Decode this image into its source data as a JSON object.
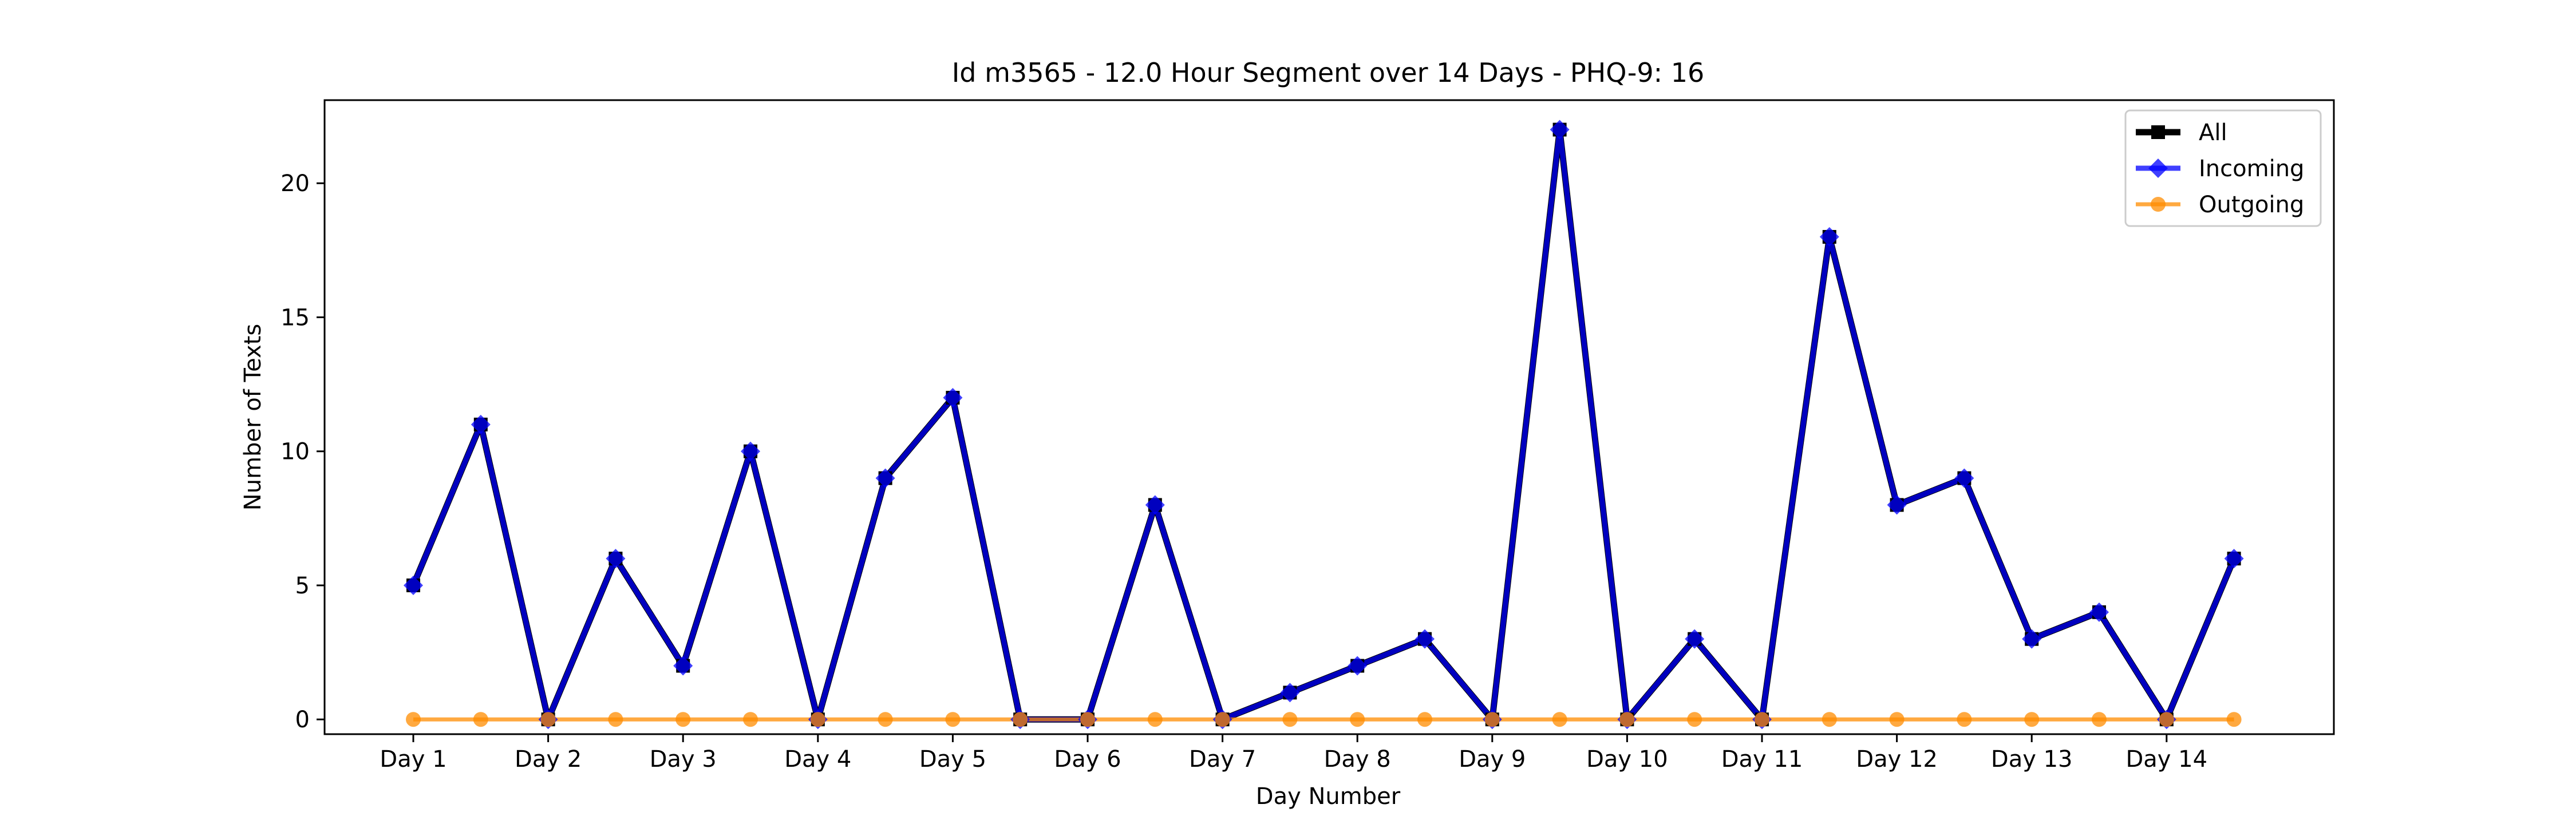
{
  "chart_data": {
    "type": "line",
    "title": "Id m3565 - 12.0 Hour Segment over 14 Days - PHQ-9: 16",
    "xlabel": "Day Number",
    "ylabel": "Number of Texts",
    "x_tick_labels": [
      "Day 1",
      "Day 2",
      "Day 3",
      "Day 4",
      "Day 5",
      "Day 6",
      "Day 7",
      "Day 8",
      "Day 9",
      "Day 10",
      "Day 11",
      "Day 12",
      "Day 13",
      "Day 14"
    ],
    "y_ticks": [
      0,
      5,
      10,
      15,
      20
    ],
    "ylim": [
      -0.55,
      23.1
    ],
    "legend_position": "top-right",
    "grid": false,
    "series": [
      {
        "name": "All",
        "color": "#000000",
        "marker": "square",
        "values": [
          5,
          11,
          0,
          6,
          2,
          10,
          0,
          9,
          12,
          0,
          0,
          8,
          0,
          1,
          2,
          3,
          0,
          22,
          0,
          3,
          0,
          18,
          8,
          9,
          3,
          4,
          0,
          6
        ]
      },
      {
        "name": "Incoming",
        "color": "#0000ff",
        "marker": "diamond",
        "values": [
          5,
          11,
          0,
          6,
          2,
          10,
          0,
          9,
          12,
          0,
          0,
          8,
          0,
          1,
          2,
          3,
          0,
          22,
          0,
          3,
          0,
          18,
          8,
          9,
          3,
          4,
          0,
          6
        ]
      },
      {
        "name": "Outgoing",
        "color": "#ff8c00",
        "marker": "circle",
        "values": [
          0,
          0,
          0,
          0,
          0,
          0,
          0,
          0,
          0,
          0,
          0,
          0,
          0,
          0,
          0,
          0,
          0,
          0,
          0,
          0,
          0,
          0,
          0,
          0,
          0,
          0,
          0,
          0
        ]
      }
    ]
  }
}
